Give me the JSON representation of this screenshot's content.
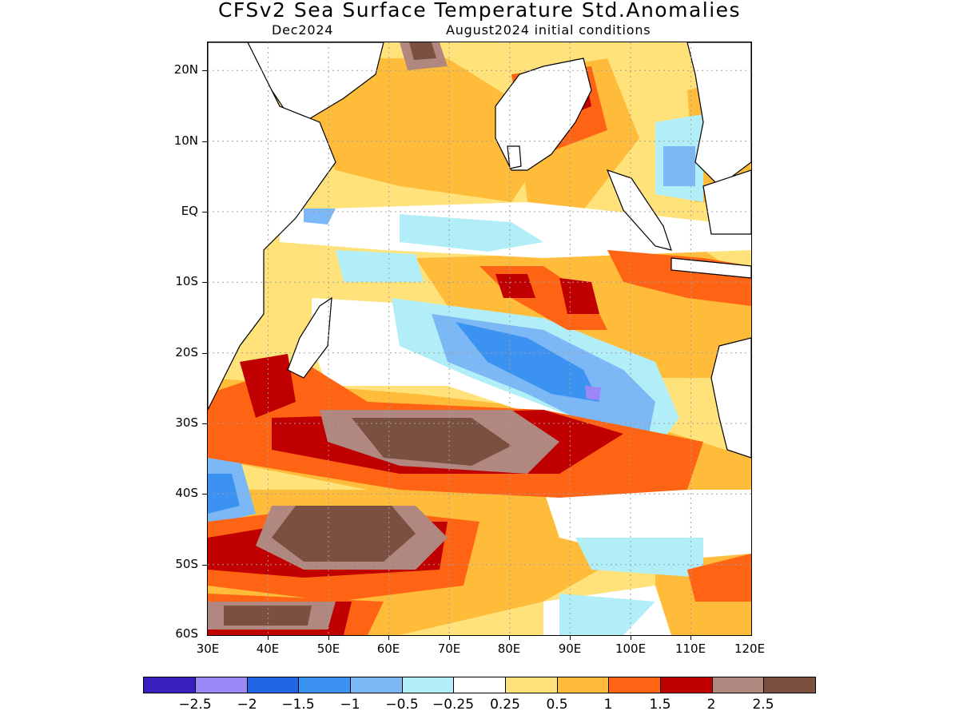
{
  "header": {
    "title": "CFSv2 Sea Surface Temperature Std.Anomalies",
    "valid_month": "Dec2024",
    "init_conditions": "August2024 initial conditions"
  },
  "axes": {
    "lon_labels": [
      "30E",
      "40E",
      "50E",
      "60E",
      "70E",
      "80E",
      "90E",
      "100E",
      "110E",
      "120E"
    ],
    "lat_labels": [
      "20N",
      "10N",
      "EQ",
      "10S",
      "20S",
      "30S",
      "40S",
      "50S",
      "60S"
    ],
    "lon_range": [
      30,
      120
    ],
    "lat_range": [
      -60,
      24
    ]
  },
  "colorbar": {
    "labels": [
      "-2.5",
      "-2",
      "-1.5",
      "-1",
      "-0.5",
      "-0.25",
      "0.25",
      "0.5",
      "1",
      "1.5",
      "2",
      "2.5"
    ],
    "colors": [
      "#3a1fbf",
      "#9b87f5",
      "#1f66e5",
      "#3c92f0",
      "#7bb8f5",
      "#b2eef7",
      "#ffffff",
      "#ffe27a",
      "#ffbc3a",
      "#ff6414",
      "#c00000",
      "#b08880",
      "#7a5040"
    ]
  },
  "colors": {
    "land": "#ffffff",
    "coast": "#000000",
    "grid": "#a0a0a0"
  }
}
